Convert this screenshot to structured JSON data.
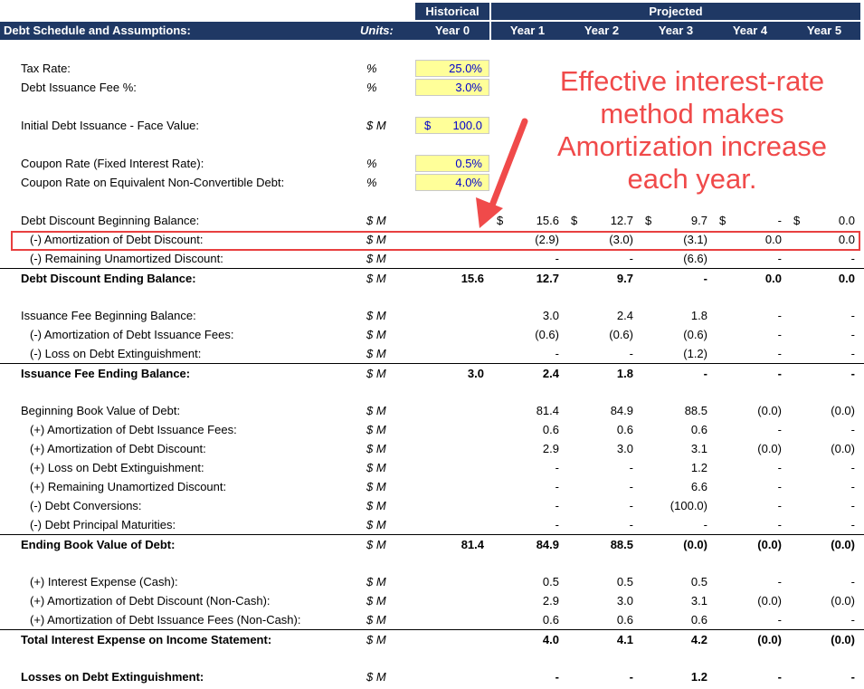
{
  "header": {
    "historical": "Historical",
    "projected": "Projected",
    "title": "Debt Schedule and Assumptions:",
    "units": "Units:",
    "years": [
      "Year 0",
      "Year 1",
      "Year 2",
      "Year 3",
      "Year 4",
      "Year 5"
    ]
  },
  "inputs": [
    {
      "label": "Tax Rate:",
      "unit": "%",
      "value": "25.0%"
    },
    {
      "label": "Debt Issuance Fee %:",
      "unit": "%",
      "value": "3.0%"
    },
    {
      "label": "Initial Debt Issuance - Face Value:",
      "unit": "$ M",
      "dollar": "$",
      "value": "100.0"
    },
    {
      "label": "Coupon Rate (Fixed Interest Rate):",
      "unit": "%",
      "value": "0.5%"
    },
    {
      "label": "Coupon Rate on Equivalent Non-Convertible Debt:",
      "unit": "%",
      "value": "4.0%"
    }
  ],
  "dollar_sign": "$",
  "rows": [
    {
      "label": "Debt Discount Beginning Balance:",
      "unit": "$ M",
      "vals": [
        "",
        "15.6",
        "12.7",
        "9.7",
        "-",
        "0.0"
      ]
    },
    {
      "label": "(-) Amortization of Debt Discount:",
      "unit": "$ M",
      "vals": [
        "",
        "(2.9)",
        "(3.0)",
        "(3.1)",
        "0.0",
        "0.0"
      ]
    },
    {
      "label": "(-) Remaining Unamortized Discount:",
      "unit": "$ M",
      "vals": [
        "",
        "-",
        "-",
        "(6.6)",
        "-",
        "-"
      ]
    },
    {
      "label": "Debt Discount Ending Balance:",
      "unit": "$ M",
      "vals": [
        "15.6",
        "12.7",
        "9.7",
        "-",
        "0.0",
        "0.0"
      ]
    },
    {
      "label": "Issuance Fee Beginning Balance:",
      "unit": "$ M",
      "vals": [
        "",
        "3.0",
        "2.4",
        "1.8",
        "-",
        "-"
      ]
    },
    {
      "label": "(-) Amortization of Debt Issuance Fees:",
      "unit": "$ M",
      "vals": [
        "",
        "(0.6)",
        "(0.6)",
        "(0.6)",
        "-",
        "-"
      ]
    },
    {
      "label": "(-) Loss on Debt Extinguishment:",
      "unit": "$ M",
      "vals": [
        "",
        "-",
        "-",
        "(1.2)",
        "-",
        "-"
      ]
    },
    {
      "label": "Issuance Fee Ending Balance:",
      "unit": "$ M",
      "vals": [
        "3.0",
        "2.4",
        "1.8",
        "-",
        "-",
        "-"
      ]
    },
    {
      "label": "Beginning Book Value of Debt:",
      "unit": "$ M",
      "vals": [
        "",
        "81.4",
        "84.9",
        "88.5",
        "(0.0)",
        "(0.0)"
      ]
    },
    {
      "label": "(+) Amortization of Debt Issuance Fees:",
      "unit": "$ M",
      "vals": [
        "",
        "0.6",
        "0.6",
        "0.6",
        "-",
        "-"
      ]
    },
    {
      "label": "(+) Amortization of Debt Discount:",
      "unit": "$ M",
      "vals": [
        "",
        "2.9",
        "3.0",
        "3.1",
        "(0.0)",
        "(0.0)"
      ]
    },
    {
      "label": "(+) Loss on Debt Extinguishment:",
      "unit": "$ M",
      "vals": [
        "",
        "-",
        "-",
        "1.2",
        "-",
        "-"
      ]
    },
    {
      "label": "(+) Remaining Unamortized Discount:",
      "unit": "$ M",
      "vals": [
        "",
        "-",
        "-",
        "6.6",
        "-",
        "-"
      ]
    },
    {
      "label": "(-) Debt Conversions:",
      "unit": "$ M",
      "vals": [
        "",
        "-",
        "-",
        "(100.0)",
        "-",
        "-"
      ]
    },
    {
      "label": "(-) Debt Principal Maturities:",
      "unit": "$ M",
      "vals": [
        "",
        "-",
        "-",
        "-",
        "-",
        "-"
      ]
    },
    {
      "label": "Ending Book Value of Debt:",
      "unit": "$ M",
      "vals": [
        "81.4",
        "84.9",
        "88.5",
        "(0.0)",
        "(0.0)",
        "(0.0)"
      ]
    },
    {
      "label": "(+) Interest Expense (Cash):",
      "unit": "$ M",
      "vals": [
        "",
        "0.5",
        "0.5",
        "0.5",
        "-",
        "-"
      ]
    },
    {
      "label": "(+) Amortization of Debt Discount (Non-Cash):",
      "unit": "$ M",
      "vals": [
        "",
        "2.9",
        "3.0",
        "3.1",
        "(0.0)",
        "(0.0)"
      ]
    },
    {
      "label": "(+) Amortization of Debt Issuance Fees (Non-Cash):",
      "unit": "$ M",
      "vals": [
        "",
        "0.6",
        "0.6",
        "0.6",
        "-",
        "-"
      ]
    },
    {
      "label": "Total Interest Expense on Income Statement:",
      "unit": "$ M",
      "vals": [
        "",
        "4.0",
        "4.1",
        "4.2",
        "(0.0)",
        "(0.0)"
      ]
    },
    {
      "label": "Losses on Debt Extinguishment:",
      "unit": "$ M",
      "vals": [
        "",
        "-",
        "-",
        "1.2",
        "-",
        "-"
      ]
    }
  ],
  "annotation": {
    "lines": [
      "Effective interest-rate",
      "method makes",
      "Amortization increase",
      "each year."
    ],
    "color": "#f04a4a"
  },
  "colors": {
    "header_bg": "#1f3864",
    "input_bg": "#ffff99",
    "input_text": "#0000cc"
  }
}
